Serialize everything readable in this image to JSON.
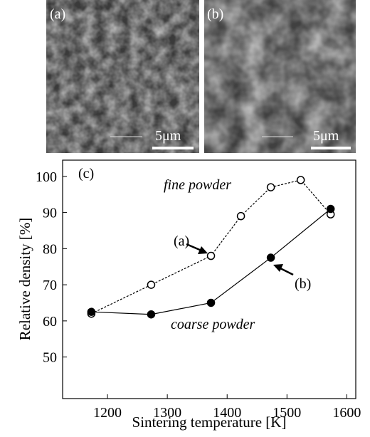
{
  "panels": [
    {
      "label": "(a)",
      "scale": "5μm"
    },
    {
      "label": "(b)",
      "scale": "5μm"
    }
  ],
  "chart_data": {
    "type": "line",
    "panel_label": "(c)",
    "x_label": "Sintering temperature [K]",
    "y_label": "Relative density [%]",
    "xlim": [
      1125,
      1615
    ],
    "ylim": [
      38.5,
      104.5
    ],
    "xticks": [
      1200,
      1300,
      1400,
      1500,
      1600
    ],
    "yticks": [
      50,
      60,
      70,
      80,
      90,
      100
    ],
    "series": [
      {
        "name": "fine powder",
        "color": "#000000",
        "marker": "open",
        "dashed": true,
        "x": [
          1173,
          1273,
          1373,
          1423,
          1473,
          1523,
          1573
        ],
        "values": [
          62,
          70,
          78,
          89,
          97,
          99,
          89.5
        ]
      },
      {
        "name": "coarse powder",
        "color": "#000000",
        "marker": "filled",
        "dashed": false,
        "x": [
          1173,
          1273,
          1373,
          1473,
          1573
        ],
        "values": [
          62.5,
          61.8,
          65,
          77.5,
          91
        ]
      }
    ],
    "annotations": [
      "(a)",
      "(b)"
    ]
  }
}
